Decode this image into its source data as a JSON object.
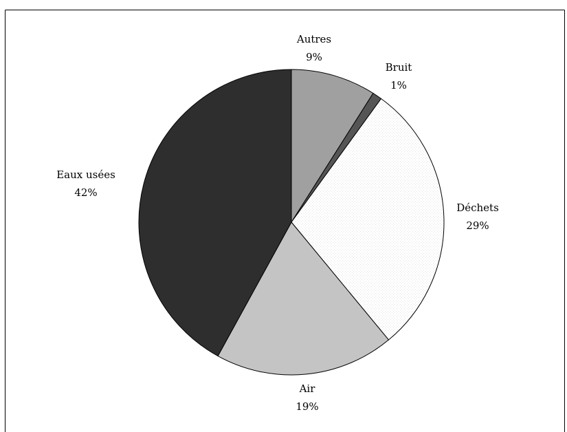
{
  "chart_data": {
    "type": "pie",
    "title": "",
    "start_angle_deg": 0,
    "direction": "clockwise",
    "legend": "none",
    "slices": [
      {
        "label": "Autres",
        "value": 9,
        "display": "9%",
        "color": "#a0a0a0",
        "pattern": "solid"
      },
      {
        "label": "Bruit",
        "value": 1,
        "display": "1%",
        "color": "#555555",
        "pattern": "solid"
      },
      {
        "label": "Déchets",
        "value": 29,
        "display": "29%",
        "color": "#ffffff",
        "pattern": "stipple"
      },
      {
        "label": "Air",
        "value": 19,
        "display": "19%",
        "color": "#c4c4c4",
        "pattern": "solid"
      },
      {
        "label": "Eaux usées",
        "value": 42,
        "display": "42%",
        "color": "#2e2e2e",
        "pattern": "solid"
      }
    ]
  }
}
